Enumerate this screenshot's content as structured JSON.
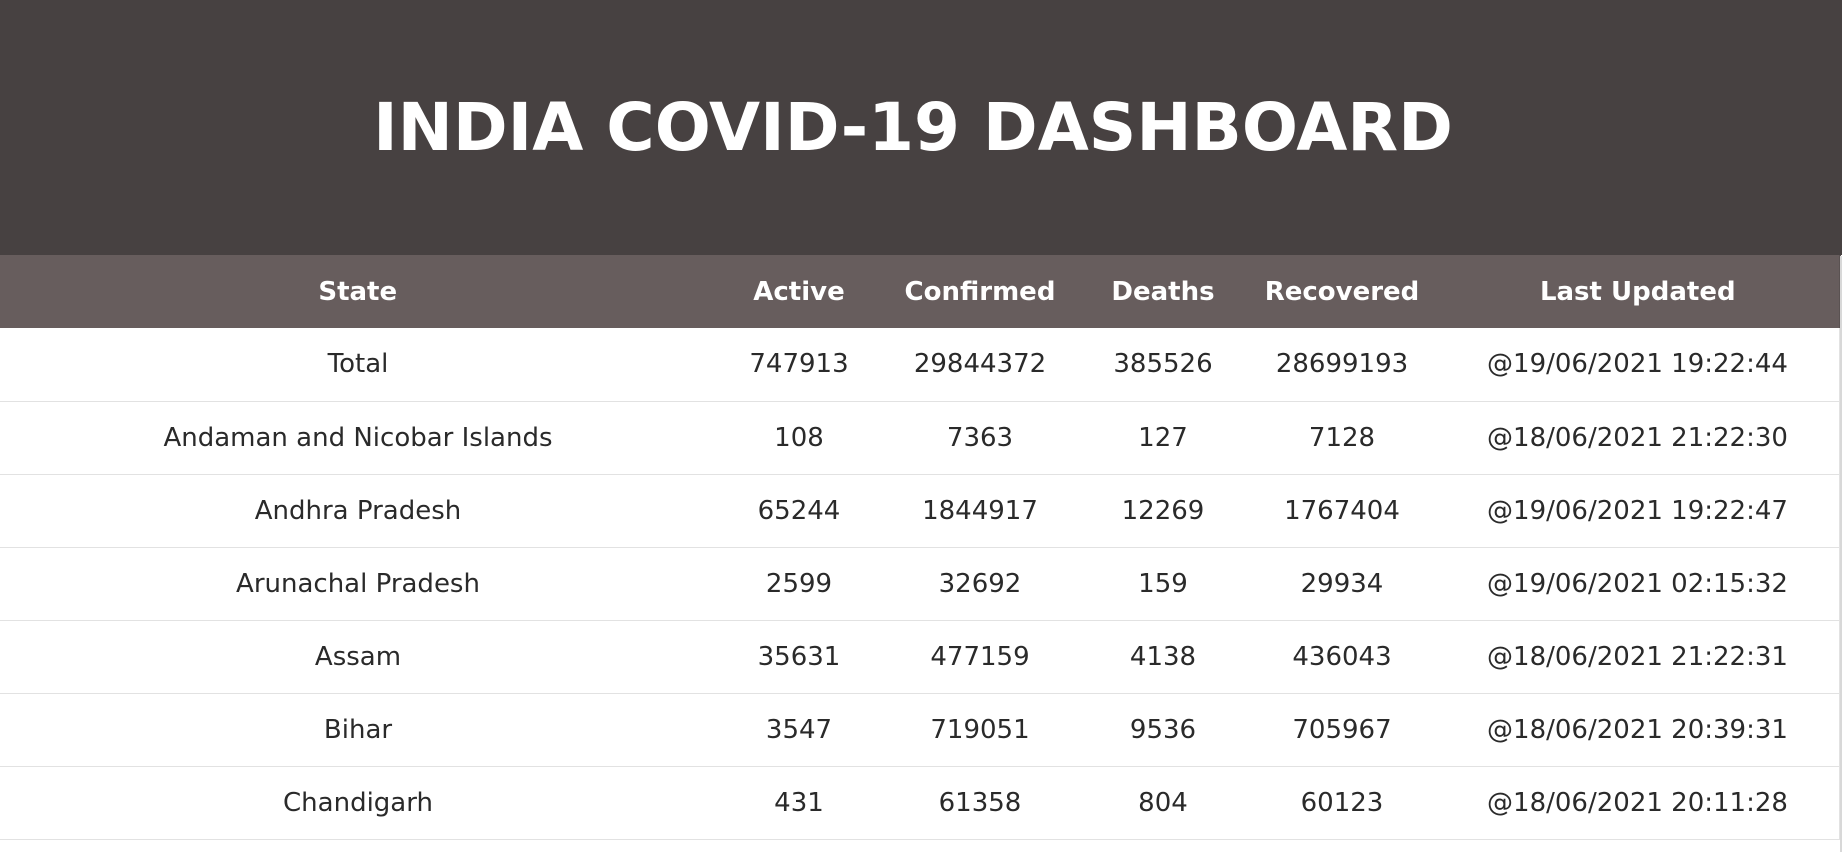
{
  "header": {
    "title": "INDIA COVID-19 DASHBOARD"
  },
  "table": {
    "columns": [
      "State",
      "Active",
      "Confirmed",
      "Deaths",
      "Recovered",
      "Last Updated"
    ],
    "rows": [
      [
        "Total",
        "747913",
        "29844372",
        "385526",
        "28699193",
        "@19/06/2021 19:22:44"
      ],
      [
        "Andaman and Nicobar Islands",
        "108",
        "7363",
        "127",
        "7128",
        "@18/06/2021 21:22:30"
      ],
      [
        "Andhra Pradesh",
        "65244",
        "1844917",
        "12269",
        "1767404",
        "@19/06/2021 19:22:47"
      ],
      [
        "Arunachal Pradesh",
        "2599",
        "32692",
        "159",
        "29934",
        "@19/06/2021 02:15:32"
      ],
      [
        "Assam",
        "35631",
        "477159",
        "4138",
        "436043",
        "@18/06/2021 21:22:31"
      ],
      [
        "Bihar",
        "3547",
        "719051",
        "9536",
        "705967",
        "@18/06/2021 20:39:31"
      ],
      [
        "Chandigarh",
        "431",
        "61358",
        "804",
        "60123",
        "@18/06/2021 20:11:28"
      ]
    ]
  },
  "colors": {
    "header_bg": "#474141",
    "table_header_bg": "#675d5d",
    "row_divider": "#e2e2e2"
  }
}
